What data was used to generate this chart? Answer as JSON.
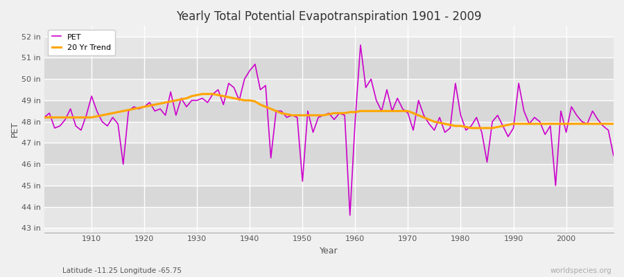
{
  "title": "Yearly Total Potential Evapotranspiration 1901 - 2009",
  "xlabel": "Year",
  "ylabel": "PET",
  "subtitle_left": "Latitude -11.25 Longitude -65.75",
  "subtitle_right": "worldspecies.org",
  "pet_color": "#cc00cc",
  "trend_color": "#ffa500",
  "bg_color": "#dcdcdc",
  "band_light": "#e8e8e8",
  "band_dark": "#d4d4d4",
  "grid_color": "#ffffff",
  "ylim": [
    42.8,
    52.5
  ],
  "yticks": [
    43,
    44,
    45,
    46,
    47,
    48,
    49,
    50,
    51,
    52
  ],
  "ytick_labels": [
    "43 in",
    "44 in",
    "45 in",
    "46 in",
    "47 in",
    "48 in",
    "49 in",
    "50 in",
    "51 in",
    "52 in"
  ],
  "xtick_positions": [
    1910,
    1920,
    1930,
    1940,
    1950,
    1960,
    1970,
    1980,
    1990,
    2000
  ],
  "years": [
    1901,
    1902,
    1903,
    1904,
    1905,
    1906,
    1907,
    1908,
    1909,
    1910,
    1911,
    1912,
    1913,
    1914,
    1915,
    1916,
    1917,
    1918,
    1919,
    1920,
    1921,
    1922,
    1923,
    1924,
    1925,
    1926,
    1927,
    1928,
    1929,
    1930,
    1931,
    1932,
    1933,
    1934,
    1935,
    1936,
    1937,
    1938,
    1939,
    1940,
    1941,
    1942,
    1943,
    1944,
    1945,
    1946,
    1947,
    1948,
    1949,
    1950,
    1951,
    1952,
    1953,
    1954,
    1955,
    1956,
    1957,
    1958,
    1959,
    1960,
    1961,
    1962,
    1963,
    1964,
    1965,
    1966,
    1967,
    1968,
    1969,
    1970,
    1971,
    1972,
    1973,
    1974,
    1975,
    1976,
    1977,
    1978,
    1979,
    1980,
    1981,
    1982,
    1983,
    1984,
    1985,
    1986,
    1987,
    1988,
    1989,
    1990,
    1991,
    1992,
    1993,
    1994,
    1995,
    1996,
    1997,
    1998,
    1999,
    2000,
    2001,
    2002,
    2003,
    2004,
    2005,
    2006,
    2007,
    2008,
    2009
  ],
  "pet_values": [
    48.2,
    48.4,
    47.7,
    47.8,
    48.1,
    48.6,
    47.8,
    47.6,
    48.3,
    49.2,
    48.5,
    48.0,
    47.8,
    48.2,
    47.9,
    46.0,
    48.5,
    48.7,
    48.6,
    48.7,
    48.9,
    48.5,
    48.6,
    48.3,
    49.4,
    48.3,
    49.1,
    48.7,
    49.0,
    49.0,
    49.1,
    48.9,
    49.3,
    49.5,
    48.8,
    49.8,
    49.6,
    49.0,
    50.0,
    50.4,
    50.7,
    49.5,
    49.7,
    46.3,
    48.5,
    48.5,
    48.2,
    48.3,
    48.2,
    45.2,
    48.5,
    47.5,
    48.2,
    48.3,
    48.4,
    48.1,
    48.4,
    48.3,
    43.6,
    48.1,
    51.6,
    49.6,
    50.0,
    49.0,
    48.5,
    49.5,
    48.5,
    49.1,
    48.6,
    48.4,
    47.6,
    49.0,
    48.3,
    47.9,
    47.6,
    48.2,
    47.5,
    47.7,
    49.8,
    48.3,
    47.6,
    47.8,
    48.2,
    47.5,
    46.1,
    48.0,
    48.3,
    47.8,
    47.3,
    47.7,
    49.8,
    48.5,
    47.9,
    48.2,
    48.0,
    47.4,
    47.8,
    45.0,
    48.5,
    47.5,
    48.7,
    48.3,
    48.0,
    47.9,
    48.5,
    48.1,
    47.8,
    47.6,
    46.4
  ],
  "trend_values": [
    48.2,
    48.2,
    48.2,
    48.2,
    48.2,
    48.2,
    48.2,
    48.2,
    48.2,
    48.2,
    48.25,
    48.3,
    48.35,
    48.4,
    48.45,
    48.5,
    48.55,
    48.6,
    48.65,
    48.7,
    48.75,
    48.8,
    48.85,
    48.9,
    48.95,
    49.0,
    49.05,
    49.1,
    49.2,
    49.25,
    49.3,
    49.3,
    49.3,
    49.25,
    49.2,
    49.15,
    49.1,
    49.05,
    49.0,
    49.0,
    48.95,
    48.8,
    48.7,
    48.6,
    48.5,
    48.4,
    48.35,
    48.3,
    48.3,
    48.3,
    48.3,
    48.3,
    48.3,
    48.3,
    48.35,
    48.4,
    48.4,
    48.4,
    48.45,
    48.45,
    48.5,
    48.5,
    48.5,
    48.5,
    48.5,
    48.5,
    48.5,
    48.5,
    48.5,
    48.5,
    48.4,
    48.3,
    48.2,
    48.1,
    48.0,
    47.95,
    47.9,
    47.85,
    47.8,
    47.8,
    47.75,
    47.7,
    47.7,
    47.7,
    47.7,
    47.7,
    47.75,
    47.8,
    47.85,
    47.9,
    47.9,
    47.9,
    47.9,
    47.9,
    47.9,
    47.9,
    47.9,
    47.9,
    47.9,
    47.9,
    47.9,
    47.9,
    47.9,
    47.9,
    47.9,
    47.9,
    47.9,
    47.9,
    47.9
  ]
}
